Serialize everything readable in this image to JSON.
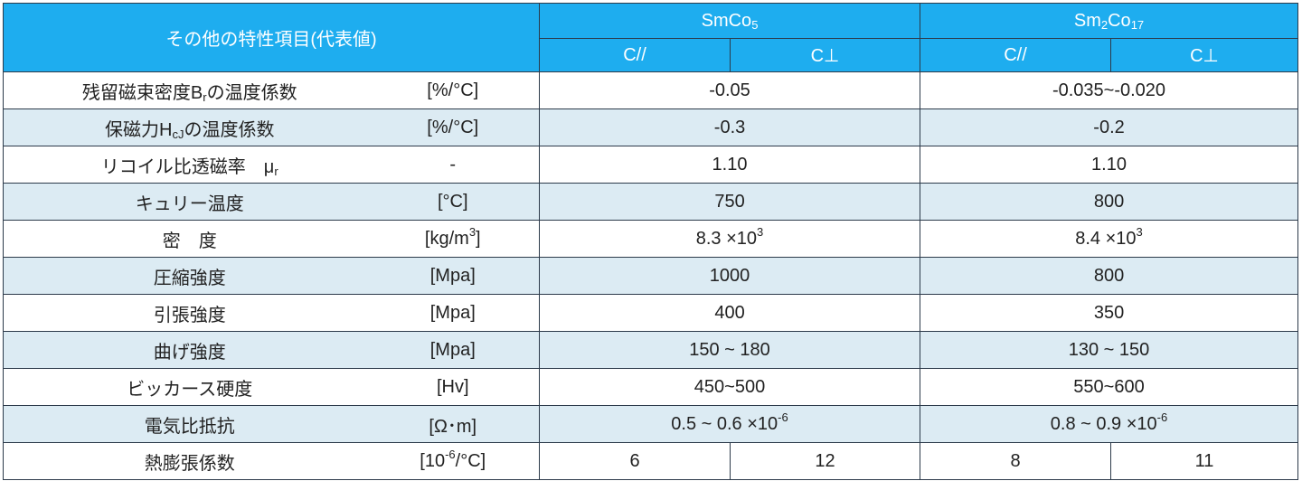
{
  "header": {
    "title": "その他の特性項目(代表値)",
    "material1": {
      "base": "SmCo",
      "sub": "5"
    },
    "material2": {
      "a": "Sm",
      "sub1": "2",
      "b": "Co",
      "sub2": "17"
    },
    "c_parallel": "C//",
    "c_perp": "C⊥"
  },
  "rows": [
    {
      "name_a": "残留磁束密度B",
      "name_sub": "r",
      "name_b": "の温度係数",
      "unit": "[%/°C]",
      "smco5": "-0.05",
      "sm2co17": "-0.035~-0.020"
    },
    {
      "name_a": "保磁力H",
      "name_sub": "cJ",
      "name_b": "の温度係数",
      "unit": "[%/°C]",
      "smco5": "-0.3",
      "sm2co17": "-0.2"
    },
    {
      "name_a": "リコイル比透磁率　μ",
      "name_sub": "r",
      "unit": "-",
      "smco5": "1.10",
      "sm2co17": "1.10"
    },
    {
      "name": "キュリー温度",
      "unit": "[°C]",
      "smco5": "750",
      "sm2co17": "800"
    },
    {
      "name": "密　度",
      "unit_a": "[kg/m",
      "unit_sup": "3",
      "unit_b": "]",
      "smco5_a": "8.3 ×10",
      "smco5_sup": "3",
      "sm2co17_a": "8.4 ×10",
      "sm2co17_sup": "3"
    },
    {
      "name": "圧縮強度",
      "unit": "[Mpa]",
      "smco5": "1000",
      "sm2co17": "800"
    },
    {
      "name": "引張強度",
      "unit": "[Mpa]",
      "smco5": "400",
      "sm2co17": "350"
    },
    {
      "name": "曲げ強度",
      "unit": "[Mpa]",
      "smco5": "150 ~ 180",
      "sm2co17": "130 ~ 150"
    },
    {
      "name": "ビッカース硬度",
      "unit": "[Hv]",
      "smco5": "450~500",
      "sm2co17": "550~600"
    },
    {
      "name": "電気比抵抗",
      "unit": "[Ω･m]",
      "smco5_a": "0.5 ~ 0.6 ×10",
      "smco5_sup": "-6",
      "sm2co17_a": "0.8 ~ 0.9 ×10",
      "sm2co17_sup": "-6"
    },
    {
      "name": "熱膨張係数",
      "unit_a": "[10",
      "unit_sup": "-6",
      "unit_b": "/°C]",
      "smco5_par": "6",
      "smco5_perp": "12",
      "sm2co17_par": "8",
      "sm2co17_perp": "11"
    }
  ]
}
